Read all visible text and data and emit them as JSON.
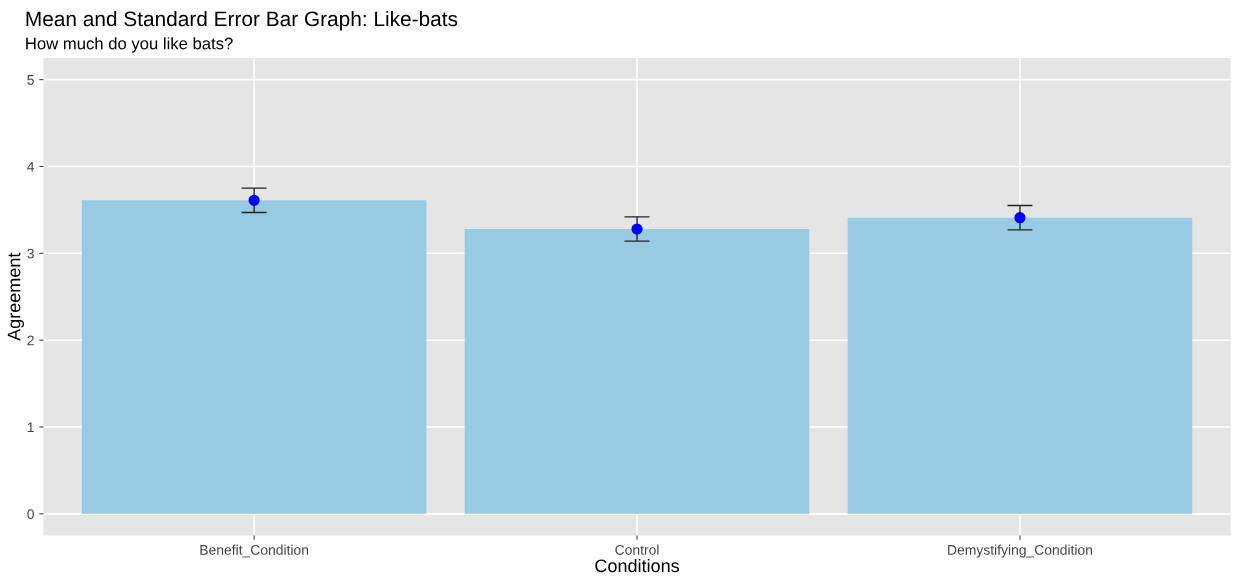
{
  "chart_data": {
    "type": "bar",
    "title": "Mean and Standard Error Bar Graph: Like-bats",
    "subtitle": "How much do you like bats?",
    "xlabel": "Conditions",
    "ylabel": "Agreement",
    "categories": [
      "Benefit_Condition",
      "Control",
      "Demystifying_Condition"
    ],
    "series": [
      {
        "color": "#98cbe3",
        "values": [
          3.61,
          3.28,
          3.41
        ],
        "errors": [
          0.14,
          0.14,
          0.14
        ]
      },
      {
        "type": "scatter",
        "color": "#0000ff",
        "x": [
          "Benefit_Condition",
          "Control",
          "Demystifying_Condition"
        ],
        "values": [
          3.61,
          3.28,
          3.41
        ],
        "marker": "circle"
      }
    ],
    "ylim": [
      -0.25,
      5.25
    ],
    "yticks": [
      0,
      1,
      2,
      3,
      4,
      5
    ],
    "grid": true
  }
}
